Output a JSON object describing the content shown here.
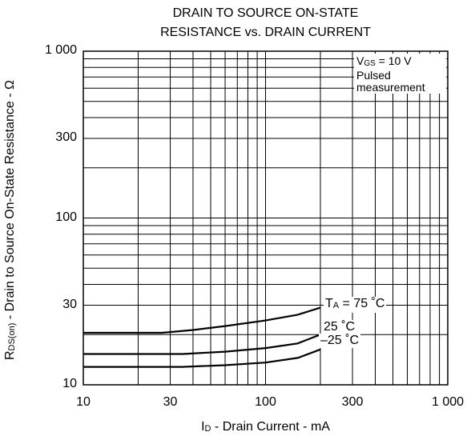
{
  "chart_data": {
    "type": "line",
    "title": "DRAIN TO SOURCE ON-STATE\nRESISTANCE vs. DRAIN CURRENT",
    "title_lines": [
      "DRAIN TO SOURCE ON-STATE",
      "RESISTANCE vs. DRAIN CURRENT"
    ],
    "xlabel": {
      "prefix": "I",
      "sub": "D",
      "suffix": " - Drain Current - mA"
    },
    "ylabel": {
      "prefix": "R",
      "sub": "DS(on)",
      "suffix": " - Drain to Source On-State Resistance - Ω"
    },
    "x_scale": "log",
    "y_scale": "log",
    "xlim": [
      10,
      1000
    ],
    "ylim": [
      10,
      1000
    ],
    "x_ticks": [
      {
        "value": 10,
        "label": "10"
      },
      {
        "value": 30,
        "label": "30"
      },
      {
        "value": 100,
        "label": "100"
      },
      {
        "value": 300,
        "label": "300"
      },
      {
        "value": 1000,
        "label": "1 000"
      }
    ],
    "y_ticks": [
      {
        "value": 10,
        "label": "10"
      },
      {
        "value": 30,
        "label": "30"
      },
      {
        "value": 100,
        "label": "100"
      },
      {
        "value": 300,
        "label": "300"
      },
      {
        "value": 1000,
        "label": "1 000"
      }
    ],
    "grid": true,
    "conditions": {
      "vgs_prefix": "V",
      "vgs_sub": "GS",
      "vgs_suffix": " = 10 V",
      "line2": "Pulsed",
      "line3": "measurement"
    },
    "series": [
      {
        "name": "TA = 75 °C",
        "label_prefix": "T",
        "label_sub": "A",
        "label_suffix": " = 75 ˚C",
        "points": [
          [
            10,
            20.5
          ],
          [
            27,
            20.5
          ],
          [
            40,
            21.3
          ],
          [
            60,
            22.5
          ],
          [
            100,
            24.3
          ],
          [
            150,
            26.3
          ],
          [
            200,
            29
          ]
        ]
      },
      {
        "name": "25 °C",
        "label": "25 ˚C",
        "points": [
          [
            10,
            15.3
          ],
          [
            35,
            15.3
          ],
          [
            60,
            15.8
          ],
          [
            100,
            16.6
          ],
          [
            150,
            17.7
          ],
          [
            200,
            20
          ]
        ]
      },
      {
        "name": "–25 °C",
        "label": "–25 ˚C",
        "points": [
          [
            10,
            12.8
          ],
          [
            35,
            12.8
          ],
          [
            60,
            13.1
          ],
          [
            100,
            13.6
          ],
          [
            150,
            14.5
          ],
          [
            200,
            16.3
          ]
        ]
      }
    ]
  }
}
